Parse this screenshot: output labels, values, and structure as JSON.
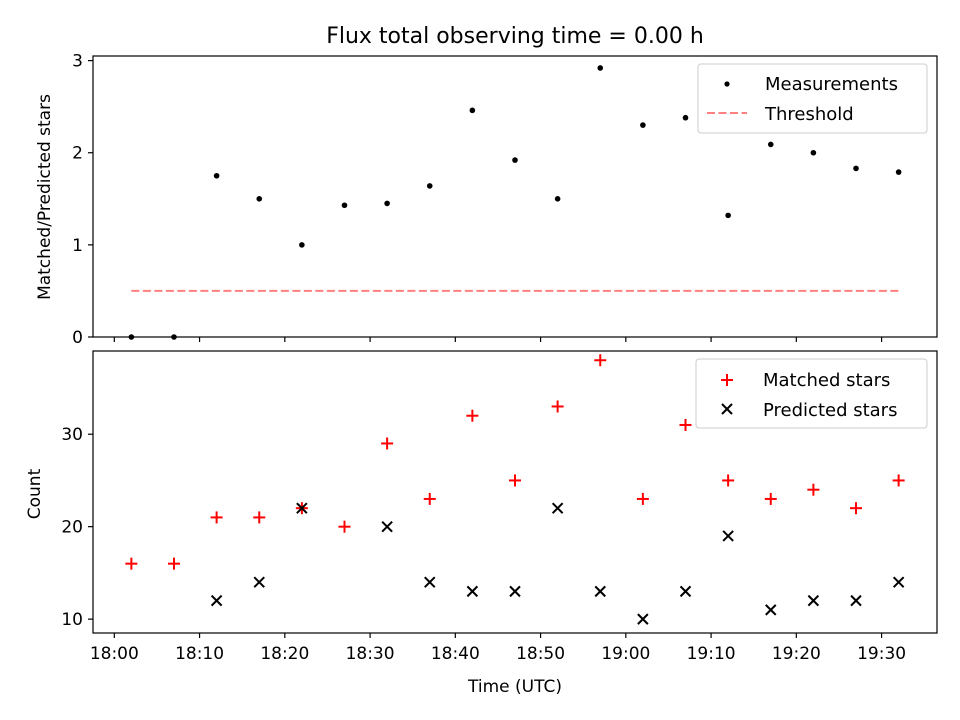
{
  "title": "Flux total observing time = 0.00 h",
  "xlabel": "Time (UTC)",
  "x_ticks": [
    "18:00",
    "18:10",
    "18:20",
    "18:30",
    "18:40",
    "18:50",
    "19:00",
    "19:10",
    "19:20",
    "19:30"
  ],
  "chart_data": [
    {
      "type": "scatter",
      "title": "Flux total observing time = 0.00 h",
      "xlabel": "",
      "ylabel": "Matched/Predicted stars",
      "ylim": [
        0,
        3.05
      ],
      "y_ticks": [
        "0",
        "1",
        "2",
        "3"
      ],
      "legend_position": "top-right",
      "x": [
        "18:02",
        "18:07",
        "18:12",
        "18:17",
        "18:22",
        "18:27",
        "18:32",
        "18:37",
        "18:42",
        "18:47",
        "18:52",
        "18:57",
        "19:02",
        "19:07",
        "19:12",
        "19:17",
        "19:22",
        "19:27",
        "19:32"
      ],
      "series": [
        {
          "name": "Measurements",
          "color": "#000000",
          "marker": "dot",
          "values": [
            0,
            0,
            1.75,
            1.5,
            1.0,
            1.43,
            1.45,
            1.64,
            2.46,
            1.92,
            1.5,
            2.92,
            2.3,
            2.38,
            1.32,
            2.09,
            2.0,
            1.83,
            1.79
          ]
        },
        {
          "name": "Threshold",
          "color": "#ff8080",
          "style": "dashed",
          "x": [
            "18:02",
            "19:32"
          ],
          "values": [
            0.5,
            0.5
          ]
        }
      ]
    },
    {
      "type": "scatter",
      "title": "",
      "xlabel": "Time (UTC)",
      "ylabel": "Count",
      "ylim": [
        8.5,
        39
      ],
      "y_ticks": [
        "10",
        "20",
        "30"
      ],
      "legend_position": "top-right",
      "x": [
        "18:02",
        "18:07",
        "18:12",
        "18:17",
        "18:22",
        "18:27",
        "18:32",
        "18:37",
        "18:42",
        "18:47",
        "18:52",
        "18:57",
        "19:02",
        "19:07",
        "19:12",
        "19:17",
        "19:22",
        "19:27",
        "19:32"
      ],
      "series": [
        {
          "name": "Matched stars",
          "color": "#ff0000",
          "marker": "plus",
          "values": [
            16,
            16,
            21,
            21,
            22,
            20,
            29,
            23,
            32,
            25,
            33,
            38,
            23,
            31,
            25,
            23,
            24,
            22,
            25
          ]
        },
        {
          "name": "Predicted stars",
          "color": "#000000",
          "marker": "x",
          "values": [
            null,
            null,
            12,
            14,
            22,
            null,
            20,
            14,
            13,
            13,
            22,
            13,
            10,
            13,
            19,
            11,
            12,
            12,
            14
          ]
        }
      ]
    }
  ]
}
